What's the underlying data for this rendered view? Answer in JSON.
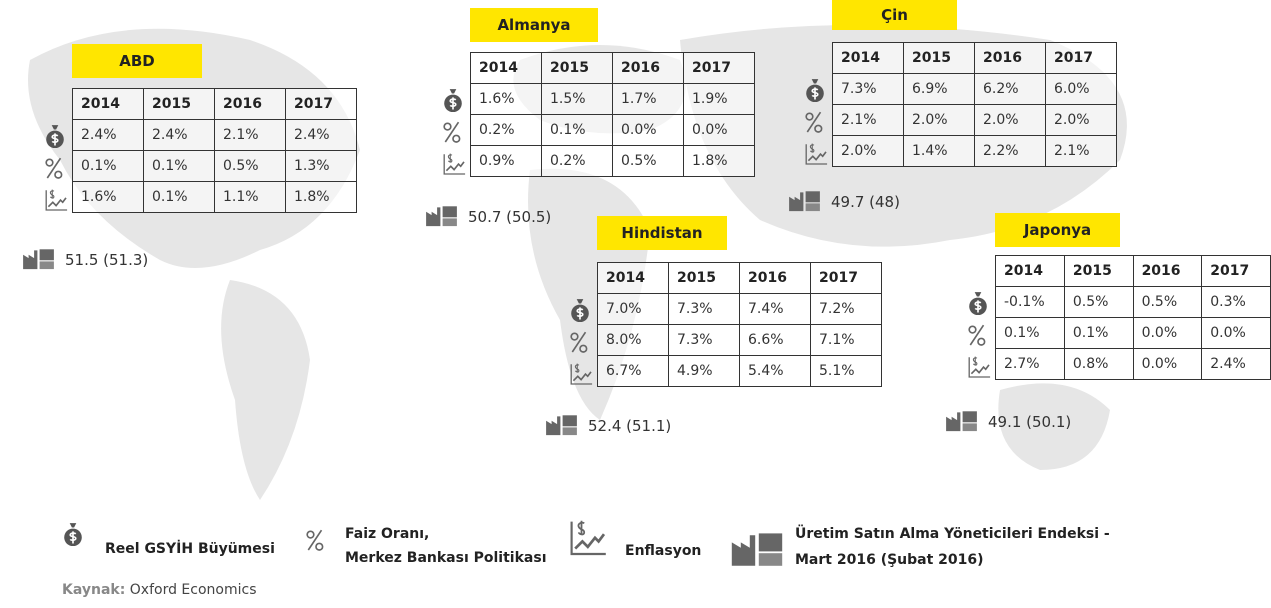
{
  "regions": [
    {
      "name": "ABD",
      "years": [
        "2014",
        "2015",
        "2016",
        "2017"
      ],
      "rows": [
        [
          "2.4%",
          "2.4%",
          "2.1%",
          "2.4%"
        ],
        [
          "0.1%",
          "0.1%",
          "0.5%",
          "1.3%"
        ],
        [
          "1.6%",
          "0.1%",
          "1.1%",
          "1.8%"
        ]
      ],
      "pmi": "51.5 (51.3)"
    },
    {
      "name": "Almanya",
      "years": [
        "2014",
        "2015",
        "2016",
        "2017"
      ],
      "rows": [
        [
          "1.6%",
          "1.5%",
          "1.7%",
          "1.9%"
        ],
        [
          "0.2%",
          "0.1%",
          "0.0%",
          "0.0%"
        ],
        [
          "0.9%",
          "0.2%",
          "0.5%",
          "1.8%"
        ]
      ],
      "pmi": "50.7 (50.5)"
    },
    {
      "name": "Çin",
      "years": [
        "2014",
        "2015",
        "2016",
        "2017"
      ],
      "rows": [
        [
          "7.3%",
          "6.9%",
          "6.2%",
          "6.0%"
        ],
        [
          "2.1%",
          "2.0%",
          "2.0%",
          "2.0%"
        ],
        [
          "2.0%",
          "1.4%",
          "2.2%",
          "2.1%"
        ]
      ],
      "pmi": "49.7 (48)"
    },
    {
      "name": "Hindistan",
      "years": [
        "2014",
        "2015",
        "2016",
        "2017"
      ],
      "rows": [
        [
          "7.0%",
          "7.3%",
          "7.4%",
          "7.2%"
        ],
        [
          "8.0%",
          "7.3%",
          "6.6%",
          "7.1%"
        ],
        [
          "6.7%",
          "4.9%",
          "5.4%",
          "5.1%"
        ]
      ],
      "pmi": "52.4 (51.1)"
    },
    {
      "name": "Japonya",
      "years": [
        "2014",
        "2015",
        "2016",
        "2017"
      ],
      "rows": [
        [
          "-0.1%",
          "0.5%",
          "0.5%",
          "0.3%"
        ],
        [
          "0.1%",
          "0.1%",
          "0.0%",
          "0.0%"
        ],
        [
          "2.7%",
          "0.8%",
          "0.0%",
          "2.4%"
        ]
      ],
      "pmi": "49.1 (50.1)"
    }
  ],
  "legend": {
    "gdp": "Reel GSYİH Büyümesi",
    "rate": [
      "Faiz Oranı,",
      "Merkez Bankası Politikası"
    ],
    "inflation": "Enflasyon",
    "pmi": [
      "Üretim Satın Alma Yöneticileri Endeksi -",
      "Mart 2016 (Şubat 2016)"
    ]
  },
  "source": {
    "label": "Kaynak:",
    "text": "Oxford Economics"
  }
}
